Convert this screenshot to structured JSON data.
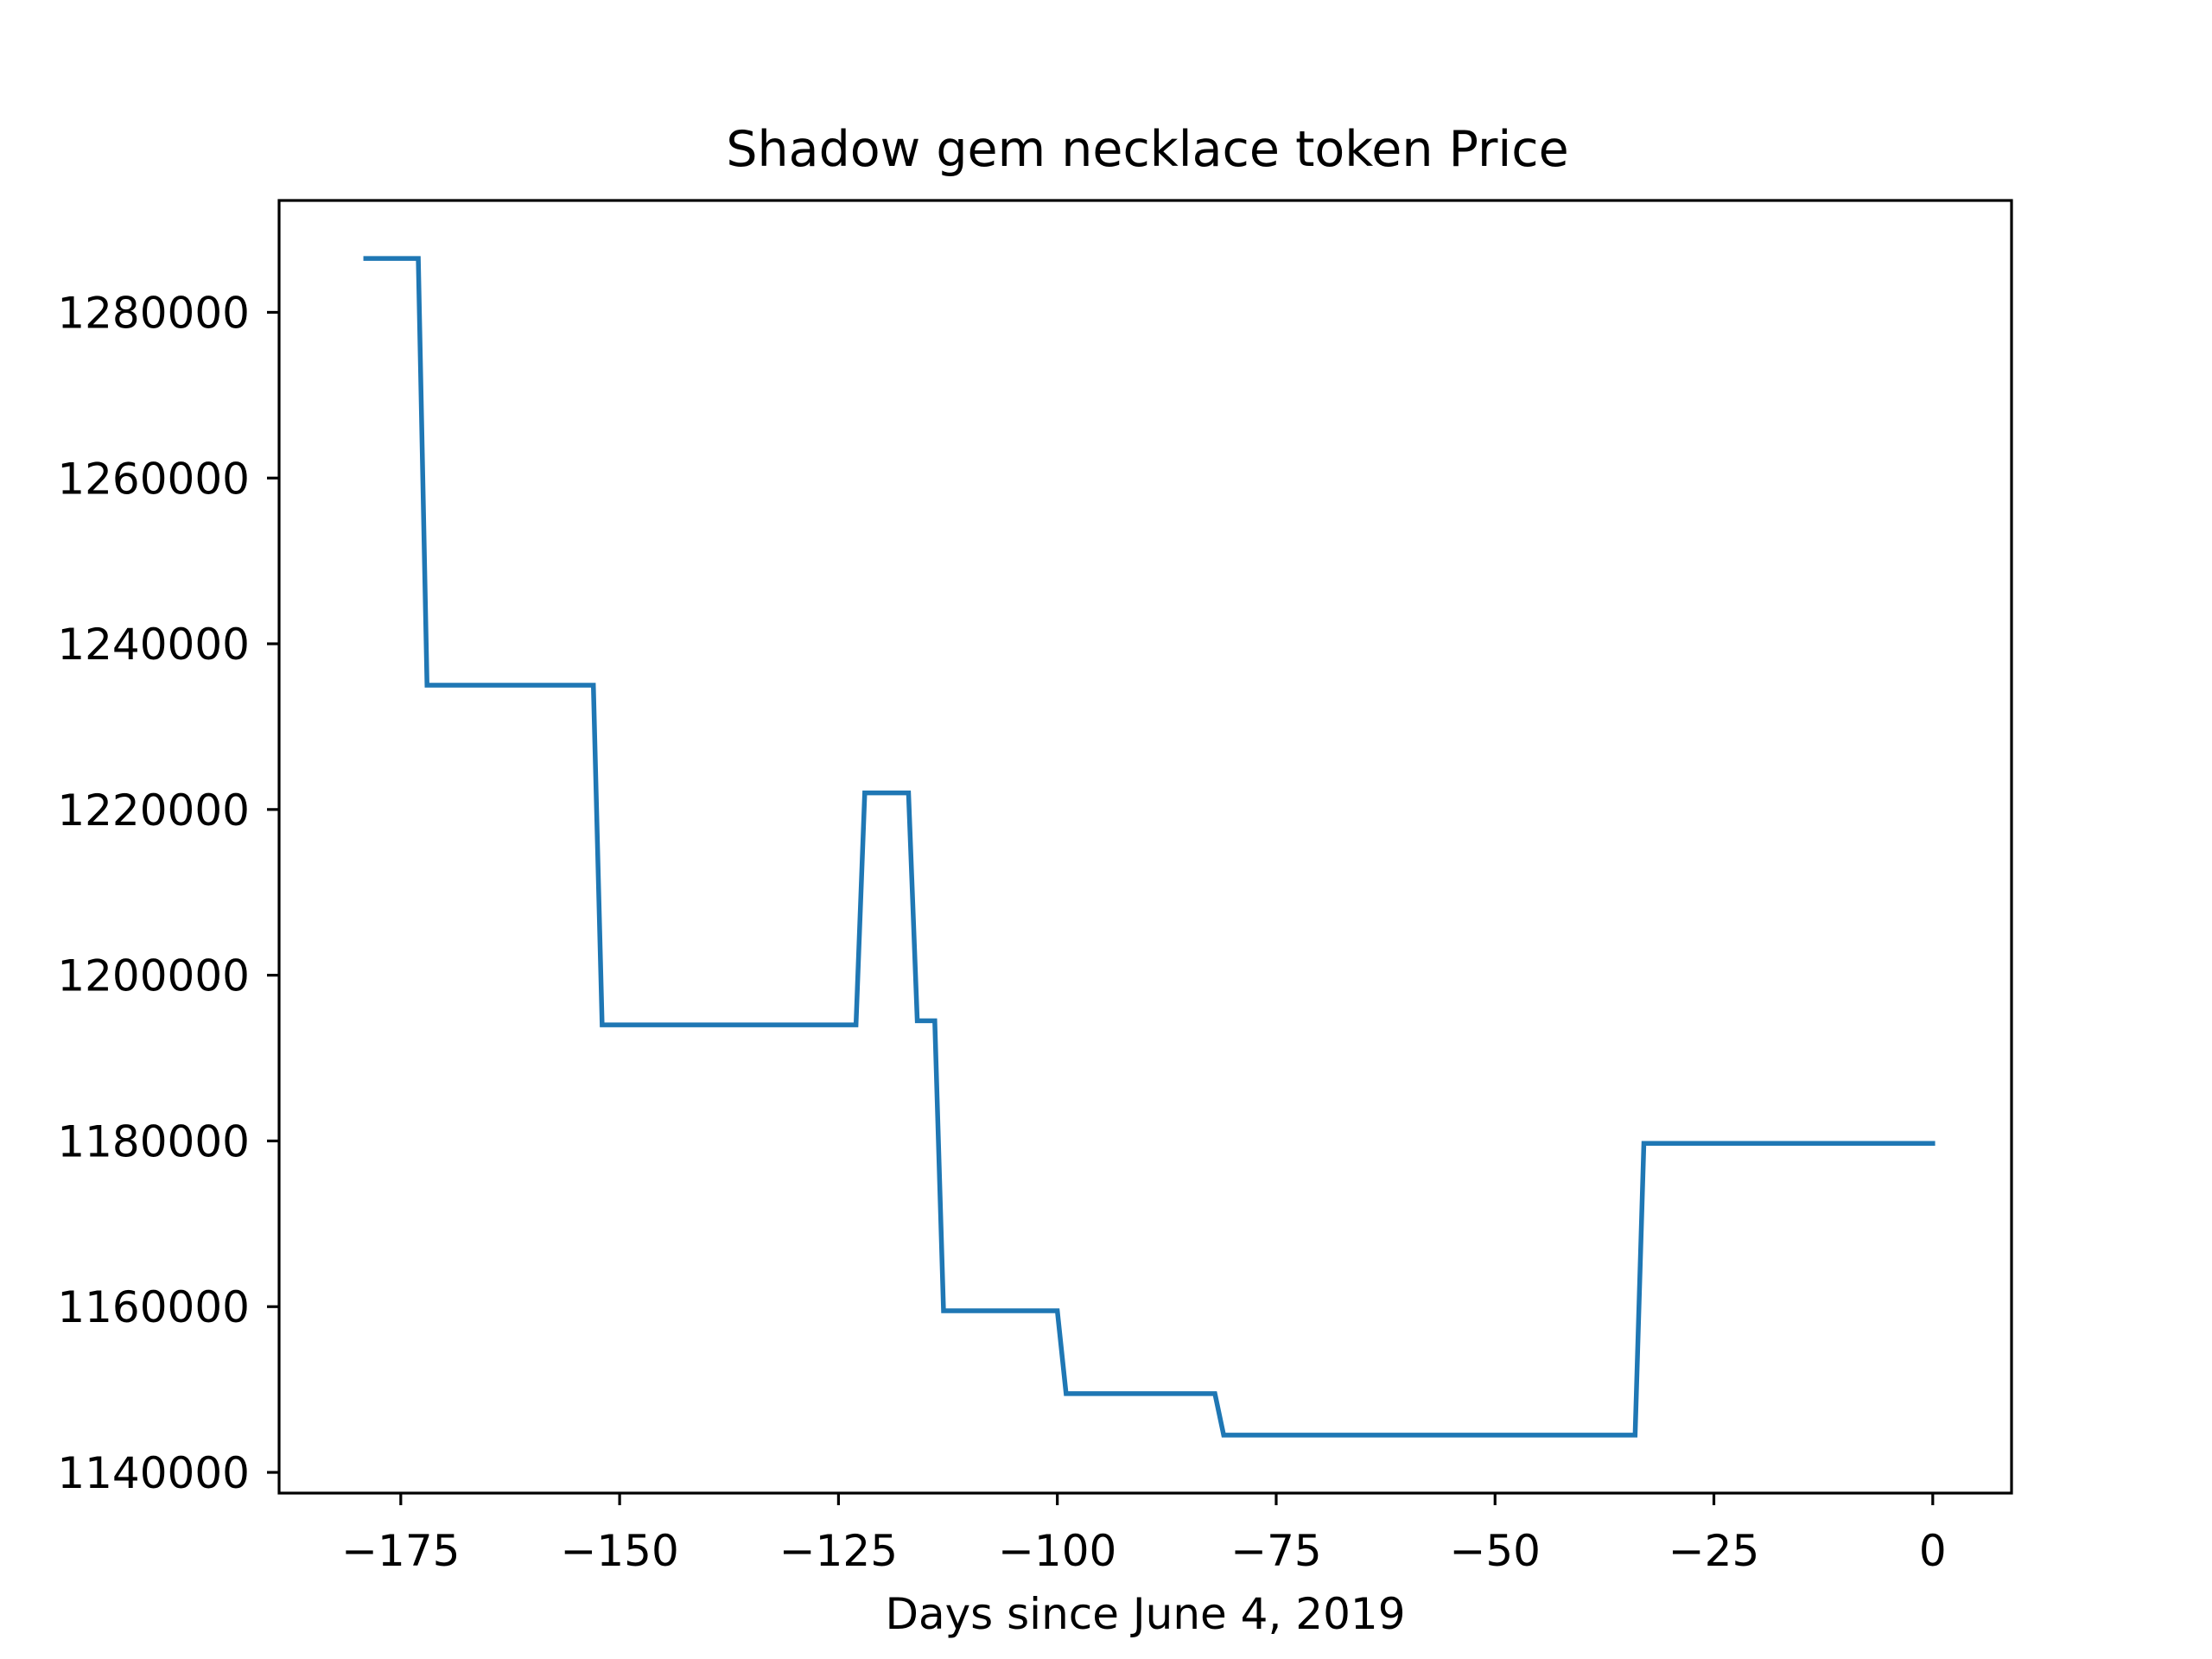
{
  "chart_data": {
    "type": "line",
    "title": "Shadow gem necklace token Price",
    "xlabel": "Days since June 4, 2019",
    "ylabel": "",
    "xlim": [
      -188.9,
      9
    ],
    "ylim": [
      1137500,
      1293500
    ],
    "xticks": [
      -175,
      -150,
      -125,
      -100,
      -75,
      -50,
      -25,
      0
    ],
    "xtick_labels": [
      "−175",
      "−150",
      "−125",
      "−100",
      "−75",
      "−50",
      "−25",
      "0"
    ],
    "yticks": [
      1140000,
      1160000,
      1180000,
      1200000,
      1220000,
      1240000,
      1260000,
      1280000
    ],
    "ytick_labels": [
      "1140000",
      "1160000",
      "1180000",
      "1200000",
      "1220000",
      "1240000",
      "1260000",
      "1280000"
    ],
    "grid": false,
    "series": [
      {
        "color": "#1f77b4",
        "x": [
          -179,
          -173,
          -172,
          -153,
          -152,
          -123,
          -122,
          -117,
          -116,
          -114,
          -113,
          -100,
          -99,
          -82,
          -81,
          -34,
          -33,
          0
        ],
        "y": [
          1286500,
          1286500,
          1235000,
          1235000,
          1194000,
          1194000,
          1222000,
          1222000,
          1194500,
          1194500,
          1159500,
          1159500,
          1149500,
          1149500,
          1144500,
          1144500,
          1179700,
          1179700
        ]
      }
    ]
  }
}
